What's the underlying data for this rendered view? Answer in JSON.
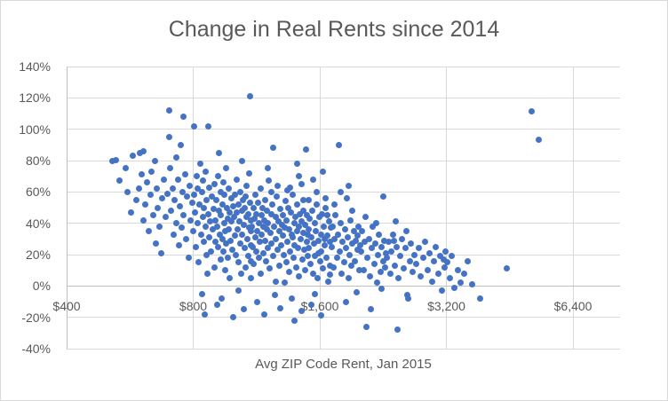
{
  "chart_data": {
    "type": "scatter",
    "title": "Change in Real Rents since 2014",
    "xlabel": "Avg ZIP Code Rent, Jan 2015",
    "ylabel": "",
    "x_scale": "log2",
    "xlim": [
      400,
      8280
    ],
    "ylim": [
      -40,
      140
    ],
    "grid": true,
    "legend": "none",
    "marker_color": "#4472C4",
    "grid_color": "#D9D9D9",
    "axis_color": "#BFBFBF",
    "text_color": "#595959",
    "x_ticks": [
      {
        "v": 400,
        "label": "$400"
      },
      {
        "v": 800,
        "label": "$800"
      },
      {
        "v": 1600,
        "label": "$1,600"
      },
      {
        "v": 3200,
        "label": "$3,200"
      },
      {
        "v": 6400,
        "label": "$6,400"
      }
    ],
    "y_ticks": [
      {
        "v": 140,
        "label": "140%"
      },
      {
        "v": 120,
        "label": "120%"
      },
      {
        "v": 100,
        "label": "100%"
      },
      {
        "v": 80,
        "label": "80%"
      },
      {
        "v": 60,
        "label": "60%"
      },
      {
        "v": 40,
        "label": "40%"
      },
      {
        "v": 20,
        "label": "20%"
      },
      {
        "v": 0,
        "label": "0%"
      },
      {
        "v": -20,
        "label": "-20%"
      },
      {
        "v": -40,
        "label": "-40%"
      }
    ],
    "points": [
      [
        515,
        80
      ],
      [
        523,
        80.5
      ],
      [
        535,
        67
      ],
      [
        553,
        75
      ],
      [
        558,
        60
      ],
      [
        568,
        47
      ],
      [
        575,
        83
      ],
      [
        585,
        55
      ],
      [
        595,
        62
      ],
      [
        598,
        85
      ],
      [
        603,
        71
      ],
      [
        608,
        86
      ],
      [
        610,
        42
      ],
      [
        615,
        52
      ],
      [
        620,
        66
      ],
      [
        628,
        35
      ],
      [
        632,
        58
      ],
      [
        638,
        73
      ],
      [
        642,
        45
      ],
      [
        648,
        80
      ],
      [
        652,
        27
      ],
      [
        655,
        62
      ],
      [
        660,
        50
      ],
      [
        665,
        38
      ],
      [
        670,
        21
      ],
      [
        675,
        56
      ],
      [
        680,
        68
      ],
      [
        688,
        44
      ],
      [
        695,
        59
      ],
      [
        700,
        112
      ],
      [
        702,
        95
      ],
      [
        705,
        75
      ],
      [
        710,
        48
      ],
      [
        715,
        62
      ],
      [
        718,
        33
      ],
      [
        722,
        55
      ],
      [
        728,
        82
      ],
      [
        730,
        40
      ],
      [
        735,
        68
      ],
      [
        740,
        26
      ],
      [
        745,
        51
      ],
      [
        748,
        90
      ],
      [
        750,
        37
      ],
      [
        755,
        60
      ],
      [
        757,
        108
      ],
      [
        760,
        45
      ],
      [
        765,
        71
      ],
      [
        770,
        30
      ],
      [
        775,
        57
      ],
      [
        780,
        18
      ],
      [
        785,
        64
      ],
      [
        790,
        42
      ],
      [
        798,
        53
      ],
      [
        800,
        35
      ],
      [
        802,
        58
      ],
      [
        804,
        102
      ],
      [
        808,
        47
      ],
      [
        812,
        25
      ],
      [
        815,
        70
      ],
      [
        818,
        40
      ],
      [
        820,
        62
      ],
      [
        825,
        15
      ],
      [
        828,
        52
      ],
      [
        832,
        78
      ],
      [
        835,
        33
      ],
      [
        838,
        60
      ],
      [
        840,
        -5
      ],
      [
        842,
        44
      ],
      [
        845,
        67
      ],
      [
        848,
        28
      ],
      [
        850,
        50
      ],
      [
        852,
        -18
      ],
      [
        855,
        38
      ],
      [
        858,
        73
      ],
      [
        860,
        20
      ],
      [
        862,
        55
      ],
      [
        865,
        8
      ],
      [
        868,
        46
      ],
      [
        870,
        102
      ],
      [
        872,
        31
      ],
      [
        875,
        63
      ],
      [
        878,
        41
      ],
      [
        882,
        22
      ],
      [
        885,
        57
      ],
      [
        890,
        36
      ],
      [
        895,
        49
      ],
      [
        898,
        12
      ],
      [
        900,
        65
      ],
      [
        902,
        42
      ],
      [
        905,
        28
      ],
      [
        908,
        55
      ],
      [
        910,
        -12
      ],
      [
        912,
        38
      ],
      [
        915,
        70
      ],
      [
        918,
        25
      ],
      [
        920,
        48
      ],
      [
        922,
        85
      ],
      [
        925,
        33
      ],
      [
        928,
        60
      ],
      [
        930,
        17
      ],
      [
        932,
        45
      ],
      [
        935,
        -8
      ],
      [
        938,
        52
      ],
      [
        940,
        30
      ],
      [
        942,
        66
      ],
      [
        945,
        22
      ],
      [
        948,
        40
      ],
      [
        950,
        58
      ],
      [
        952,
        10
      ],
      [
        955,
        35
      ],
      [
        958,
        75
      ],
      [
        960,
        27
      ],
      [
        962,
        50
      ],
      [
        965,
        43
      ],
      [
        968,
        18
      ],
      [
        970,
        62
      ],
      [
        972,
        36
      ],
      [
        975,
        5
      ],
      [
        978,
        47
      ],
      [
        982,
        29
      ],
      [
        985,
        56
      ],
      [
        988,
        41
      ],
      [
        992,
        23
      ],
      [
        995,
        51
      ],
      [
        998,
        -20
      ],
      [
        1000,
        44
      ],
      [
        1003,
        32
      ],
      [
        1006,
        58
      ],
      [
        1010,
        20
      ],
      [
        1013,
        47
      ],
      [
        1016,
        68
      ],
      [
        1020,
        36
      ],
      [
        1023,
        52
      ],
      [
        1026,
        15
      ],
      [
        1030,
        41
      ],
      [
        1033,
        27
      ],
      [
        1036,
        60
      ],
      [
        1040,
        8
      ],
      [
        1043,
        48
      ],
      [
        1046,
        33
      ],
      [
        1050,
        55
      ],
      [
        1053,
        -15
      ],
      [
        1056,
        39
      ],
      [
        1060,
        24
      ],
      [
        1063,
        50
      ],
      [
        1066,
        12
      ],
      [
        1070,
        44
      ],
      [
        1073,
        64
      ],
      [
        1076,
        30
      ],
      [
        1080,
        46
      ],
      [
        1083,
        19
      ],
      [
        1086,
        37
      ],
      [
        1090,
        121
      ],
      [
        1092,
        53
      ],
      [
        1095,
        26
      ],
      [
        1097,
        42
      ],
      [
        1100,
        35
      ],
      [
        1100,
        5
      ],
      [
        1088,
        72
      ],
      [
        1045,
        80
      ],
      [
        1025,
        -3
      ],
      [
        1068,
        57
      ],
      [
        1098,
        16
      ],
      [
        1105,
        38
      ],
      [
        1108,
        25
      ],
      [
        1112,
        50
      ],
      [
        1115,
        14
      ],
      [
        1118,
        43
      ],
      [
        1122,
        31
      ],
      [
        1125,
        58
      ],
      [
        1128,
        22
      ],
      [
        1132,
        46
      ],
      [
        1135,
        -10
      ],
      [
        1138,
        35
      ],
      [
        1142,
        53
      ],
      [
        1145,
        18
      ],
      [
        1148,
        40
      ],
      [
        1152,
        28
      ],
      [
        1155,
        62
      ],
      [
        1158,
        8
      ],
      [
        1162,
        45
      ],
      [
        1165,
        33
      ],
      [
        1168,
        50
      ],
      [
        1172,
        21
      ],
      [
        1175,
        38
      ],
      [
        1178,
        -18
      ],
      [
        1182,
        42
      ],
      [
        1185,
        29
      ],
      [
        1188,
        55
      ],
      [
        1192,
        16
      ],
      [
        1195,
        36
      ],
      [
        1198,
        48
      ],
      [
        1202,
        24
      ],
      [
        1205,
        40
      ],
      [
        1210,
        67
      ],
      [
        1215,
        11
      ],
      [
        1220,
        34
      ],
      [
        1225,
        46
      ],
      [
        1230,
        27
      ],
      [
        1235,
        52
      ],
      [
        1240,
        19
      ],
      [
        1245,
        38
      ],
      [
        1250,
        -6
      ],
      [
        1255,
        44
      ],
      [
        1260,
        30
      ],
      [
        1265,
        57
      ],
      [
        1270,
        23
      ],
      [
        1275,
        41
      ],
      [
        1280,
        13
      ],
      [
        1285,
        35
      ],
      [
        1290,
        49
      ],
      [
        1295,
        26
      ],
      [
        1300,
        39
      ],
      [
        1206,
        75
      ],
      [
        1256,
        3
      ],
      [
        1226,
        60
      ],
      [
        1286,
        -14
      ],
      [
        1240,
        88
      ],
      [
        1270,
        64
      ],
      [
        1305,
        32
      ],
      [
        1310,
        45
      ],
      [
        1315,
        20
      ],
      [
        1320,
        37
      ],
      [
        1325,
        54
      ],
      [
        1330,
        15
      ],
      [
        1335,
        42
      ],
      [
        1340,
        28
      ],
      [
        1345,
        50
      ],
      [
        1350,
        9
      ],
      [
        1355,
        36
      ],
      [
        1360,
        22
      ],
      [
        1365,
        47
      ],
      [
        1370,
        -8
      ],
      [
        1375,
        33
      ],
      [
        1380,
        58
      ],
      [
        1385,
        18
      ],
      [
        1390,
        40
      ],
      [
        1395,
        26
      ],
      [
        1400,
        44
      ],
      [
        1405,
        12
      ],
      [
        1410,
        35
      ],
      [
        1415,
        52
      ],
      [
        1420,
        24
      ],
      [
        1425,
        38
      ],
      [
        1430,
        6
      ],
      [
        1435,
        46
      ],
      [
        1440,
        30
      ],
      [
        1445,
        -16
      ],
      [
        1450,
        41
      ],
      [
        1455,
        17
      ],
      [
        1460,
        34
      ],
      [
        1465,
        55
      ],
      [
        1470,
        23
      ],
      [
        1475,
        39
      ],
      [
        1480,
        10
      ],
      [
        1485,
        87
      ],
      [
        1488,
        28
      ],
      [
        1492,
        45
      ],
      [
        1496,
        33
      ],
      [
        1430,
        70
      ],
      [
        1360,
        63
      ],
      [
        1390,
        -22
      ],
      [
        1410,
        78
      ],
      [
        1340,
        61
      ],
      [
        1460,
        48
      ],
      [
        1320,
        2
      ],
      [
        1450,
        65
      ],
      [
        1380,
        31
      ],
      [
        1499,
        19
      ],
      [
        1502,
        36
      ],
      [
        1508,
        24
      ],
      [
        1515,
        43
      ],
      [
        1520,
        14
      ],
      [
        1528,
        31
      ],
      [
        1535,
        48
      ],
      [
        1540,
        8
      ],
      [
        1548,
        27
      ],
      [
        1555,
        40
      ],
      [
        1560,
        19
      ],
      [
        1568,
        35
      ],
      [
        1575,
        52
      ],
      [
        1580,
        5
      ],
      [
        1588,
        29
      ],
      [
        1595,
        44
      ],
      [
        1600,
        16
      ],
      [
        1608,
        33
      ],
      [
        1615,
        22
      ],
      [
        1622,
        46
      ],
      [
        1630,
        11
      ],
      [
        1638,
        38
      ],
      [
        1645,
        26
      ],
      [
        1652,
        50
      ],
      [
        1660,
        18
      ],
      [
        1668,
        32
      ],
      [
        1675,
        3
      ],
      [
        1682,
        41
      ],
      [
        1690,
        28
      ],
      [
        1697,
        37
      ],
      [
        1530,
        -12
      ],
      [
        1570,
        60
      ],
      [
        1610,
        -19
      ],
      [
        1650,
        56
      ],
      [
        1690,
        7
      ],
      [
        1545,
        68
      ],
      [
        1625,
        73
      ],
      [
        1585,
        21
      ],
      [
        1665,
        45
      ],
      [
        1505,
        55
      ],
      [
        1695,
        13
      ],
      [
        1558,
        -5
      ],
      [
        1642,
        30
      ],
      [
        1705,
        25
      ],
      [
        1715,
        38
      ],
      [
        1725,
        12
      ],
      [
        1735,
        30
      ],
      [
        1745,
        45
      ],
      [
        1755,
        18
      ],
      [
        1765,
        33
      ],
      [
        1775,
        90
      ],
      [
        1785,
        22
      ],
      [
        1795,
        40
      ],
      [
        1805,
        8
      ],
      [
        1815,
        28
      ],
      [
        1825,
        15
      ],
      [
        1835,
        36
      ],
      [
        1845,
        24
      ],
      [
        1855,
        56
      ],
      [
        1865,
        31
      ],
      [
        1875,
        5
      ],
      [
        1885,
        20
      ],
      [
        1895,
        42
      ],
      [
        1905,
        13
      ],
      [
        1915,
        27
      ],
      [
        1925,
        35
      ],
      [
        1935,
        16
      ],
      [
        1945,
        29
      ],
      [
        1955,
        -4
      ],
      [
        1965,
        23
      ],
      [
        1975,
        38
      ],
      [
        1985,
        10
      ],
      [
        1995,
        26
      ],
      [
        1790,
        60
      ],
      [
        1850,
        -10
      ],
      [
        1910,
        48
      ],
      [
        1970,
        32
      ],
      [
        1730,
        52
      ],
      [
        1870,
        64
      ],
      [
        2005,
        22
      ],
      [
        2020,
        35
      ],
      [
        2035,
        10
      ],
      [
        2050,
        28
      ],
      [
        2067,
        -26
      ],
      [
        2080,
        18
      ],
      [
        2095,
        30
      ],
      [
        2110,
        6
      ],
      [
        2125,
        24
      ],
      [
        2140,
        38
      ],
      [
        2155,
        14
      ],
      [
        2170,
        27
      ],
      [
        2185,
        2
      ],
      [
        2200,
        20
      ],
      [
        2215,
        33
      ],
      [
        2230,
        9
      ],
      [
        2245,
        25
      ],
      [
        2260,
        16
      ],
      [
        2270,
        57
      ],
      [
        2275,
        29
      ],
      [
        2290,
        12
      ],
      [
        2060,
        44
      ],
      [
        2180,
        40
      ],
      [
        2120,
        -15
      ],
      [
        2240,
        -2
      ],
      [
        2295,
        21
      ],
      [
        2310,
        18
      ],
      [
        2330,
        28
      ],
      [
        2350,
        8
      ],
      [
        2370,
        22
      ],
      [
        2390,
        33
      ],
      [
        2400,
        29
      ],
      [
        2410,
        13
      ],
      [
        2435,
        25
      ],
      [
        2448,
        -28
      ],
      [
        2460,
        5
      ],
      [
        2485,
        19
      ],
      [
        2510,
        30
      ],
      [
        2535,
        11
      ],
      [
        2560,
        24
      ],
      [
        2585,
        -6
      ],
      [
        2600,
        -8
      ],
      [
        2615,
        16
      ],
      [
        2640,
        27
      ],
      [
        2665,
        9
      ],
      [
        2690,
        20
      ],
      [
        2420,
        41
      ],
      [
        2570,
        35
      ],
      [
        2710,
        14
      ],
      [
        2745,
        24
      ],
      [
        2780,
        6
      ],
      [
        2815,
        18
      ],
      [
        2850,
        28
      ],
      [
        2885,
        10
      ],
      [
        2920,
        21
      ],
      [
        2955,
        3
      ],
      [
        2990,
        16
      ],
      [
        3025,
        25
      ],
      [
        3060,
        8
      ],
      [
        3095,
        19
      ],
      [
        3130,
        -3
      ],
      [
        3165,
        12
      ],
      [
        3180,
        22
      ],
      [
        3150,
        17
      ],
      [
        3210,
        15
      ],
      [
        3255,
        5
      ],
      [
        3300,
        19
      ],
      [
        3340,
        -1
      ],
      [
        3400,
        10
      ],
      [
        3460,
        2
      ],
      [
        3520,
        8
      ],
      [
        3600,
        16
      ],
      [
        3680,
        1
      ],
      [
        3840,
        -8
      ],
      [
        4450,
        11
      ],
      [
        5100,
        111.5
      ],
      [
        5300,
        93.5
      ]
    ]
  }
}
